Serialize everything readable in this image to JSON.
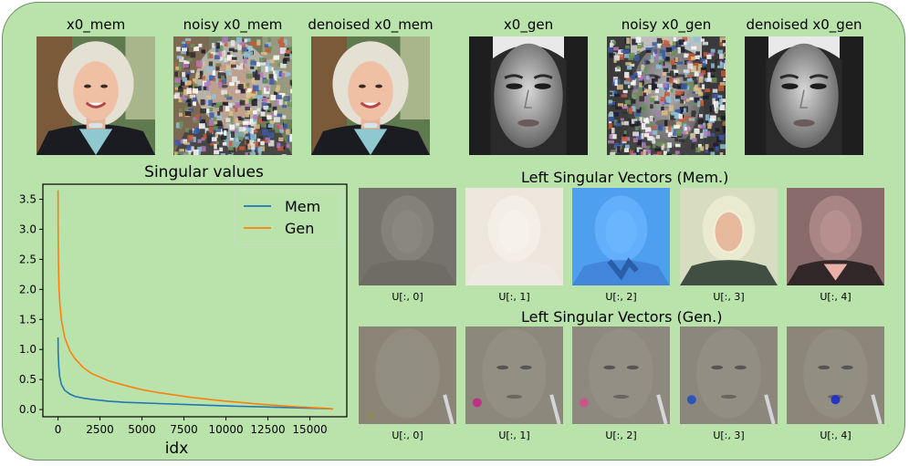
{
  "top_row": [
    {
      "caption": "x0_mem",
      "kind": "portrait-color",
      "variant": "clean"
    },
    {
      "caption": "noisy x0_mem",
      "kind": "portrait-color",
      "variant": "noisy"
    },
    {
      "caption": "denoised x0_mem",
      "kind": "portrait-color",
      "variant": "clean"
    },
    {
      "caption": "x0_gen",
      "kind": "face-gray",
      "variant": "clean"
    },
    {
      "caption": "noisy x0_gen",
      "kind": "face-gray",
      "variant": "noisy"
    },
    {
      "caption": "denoised x0_gen",
      "kind": "face-gray",
      "variant": "clean"
    }
  ],
  "mem_vectors": {
    "title": "Left Singular Vectors (Mem.)",
    "labels": [
      "U[:, 0]",
      "U[:, 1]",
      "U[:, 2]",
      "U[:, 3]",
      "U[:, 4]"
    ],
    "tints": [
      "#75736c",
      "#ece6dd",
      "#4f9ff0",
      "#d8dcc0",
      "#8a6b6b"
    ]
  },
  "gen_vectors": {
    "title": "Left Singular Vectors (Gen.)",
    "labels": [
      "U[:, 0]",
      "U[:, 1]",
      "U[:, 2]",
      "U[:, 3]",
      "U[:, 4]"
    ],
    "tints": [
      "#8b8578",
      "#8d887c",
      "#8e897e",
      "#8c877c",
      "#8b8679"
    ]
  },
  "chart_data": {
    "type": "line",
    "title": "Singular values",
    "xlabel": "idx",
    "ylabel": "",
    "xlim": [
      -900,
      17200
    ],
    "ylim": [
      -0.12,
      3.75
    ],
    "xticks": [
      0,
      2500,
      5000,
      7500,
      10000,
      12500,
      15000
    ],
    "yticks": [
      0.0,
      0.5,
      1.0,
      1.5,
      2.0,
      2.5,
      3.0,
      3.5
    ],
    "legend_position": "top-right",
    "series": [
      {
        "name": "Mem",
        "color": "#1f77b4",
        "x": [
          0,
          10,
          50,
          100,
          200,
          400,
          700,
          1000,
          1500,
          2000,
          3000,
          4000,
          5000,
          6000,
          8000,
          10000,
          12000,
          14000,
          16000,
          16384
        ],
        "y": [
          1.2,
          0.95,
          0.7,
          0.55,
          0.42,
          0.32,
          0.26,
          0.22,
          0.19,
          0.17,
          0.14,
          0.12,
          0.11,
          0.1,
          0.08,
          0.06,
          0.045,
          0.03,
          0.015,
          0.01
        ]
      },
      {
        "name": "Gen",
        "color": "#ff7f0e",
        "x": [
          0,
          10,
          30,
          60,
          100,
          200,
          400,
          700,
          1000,
          1500,
          2000,
          3000,
          4000,
          5000,
          6000,
          8000,
          10000,
          12000,
          14000,
          16000,
          16384
        ],
        "y": [
          3.65,
          3.0,
          2.4,
          2.0,
          1.8,
          1.5,
          1.2,
          0.98,
          0.85,
          0.7,
          0.6,
          0.48,
          0.4,
          0.33,
          0.28,
          0.2,
          0.14,
          0.09,
          0.05,
          0.02,
          0.01
        ]
      }
    ]
  }
}
